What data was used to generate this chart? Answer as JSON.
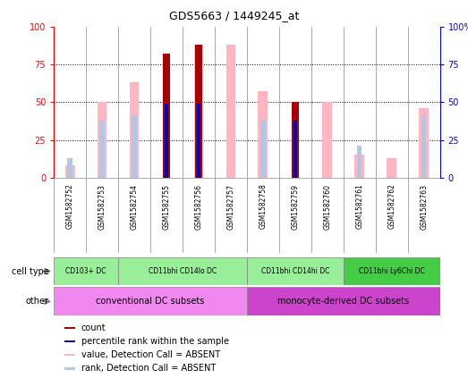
{
  "title": "GDS5663 / 1449245_at",
  "samples": [
    "GSM1582752",
    "GSM1582753",
    "GSM1582754",
    "GSM1582755",
    "GSM1582756",
    "GSM1582757",
    "GSM1582758",
    "GSM1582759",
    "GSM1582760",
    "GSM1582761",
    "GSM1582762",
    "GSM1582763"
  ],
  "count_values": [
    null,
    null,
    null,
    82,
    88,
    null,
    null,
    50,
    null,
    null,
    null,
    null
  ],
  "rank_values": [
    null,
    null,
    null,
    49,
    49,
    null,
    null,
    38,
    null,
    null,
    null,
    null
  ],
  "absent_value_values": [
    8,
    50,
    63,
    null,
    88,
    88,
    57,
    null,
    50,
    15,
    13,
    46
  ],
  "absent_rank_values": [
    13,
    38,
    41,
    null,
    null,
    null,
    38,
    null,
    null,
    21,
    null,
    41
  ],
  "cell_groups": [
    {
      "label": "CD103+ DC",
      "start": 0,
      "end": 2,
      "color": "#99ee99"
    },
    {
      "label": "CD11bhi CD14lo DC",
      "start": 2,
      "end": 6,
      "color": "#99ee99"
    },
    {
      "label": "CD11bhi CD14hi DC",
      "start": 6,
      "end": 9,
      "color": "#99ee99"
    },
    {
      "label": "CD11bhi Ly6Chi DC",
      "start": 9,
      "end": 12,
      "color": "#44cc44"
    }
  ],
  "other_groups": [
    {
      "label": "conventional DC subsets",
      "start": 0,
      "end": 6,
      "color": "#f088f0"
    },
    {
      "label": "monocyte-derived DC subsets",
      "start": 6,
      "end": 12,
      "color": "#cc44cc"
    }
  ],
  "count_color": "#aa0000",
  "rank_color": "#0000bb",
  "absent_value_color": "#ffb6c1",
  "absent_rank_color": "#b0c8e8",
  "legend_items": [
    {
      "label": "count",
      "color": "#aa0000"
    },
    {
      "label": "percentile rank within the sample",
      "color": "#0000bb"
    },
    {
      "label": "value, Detection Call = ABSENT",
      "color": "#ffb6c1"
    },
    {
      "label": "rank, Detection Call = ABSENT",
      "color": "#b0c8e8"
    }
  ]
}
